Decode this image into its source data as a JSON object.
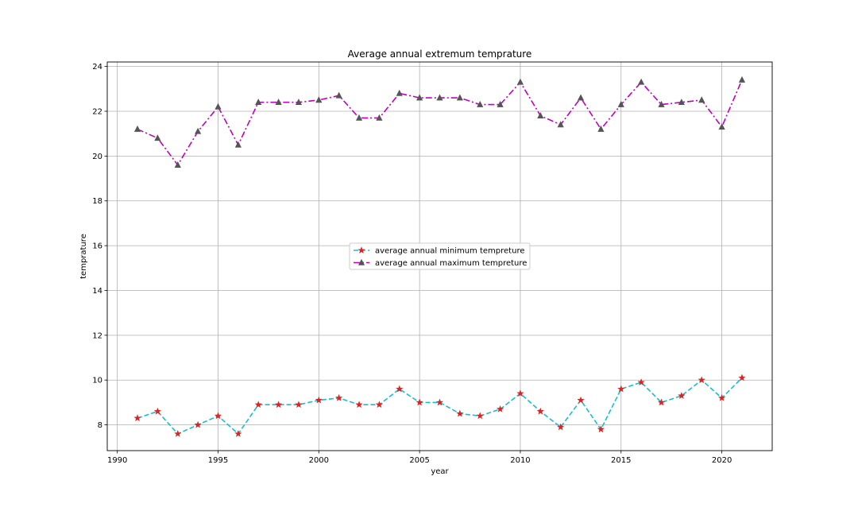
{
  "chart_data": {
    "type": "line",
    "title": "Average annual extremum temprature",
    "xlabel": "year",
    "ylabel": "temprature",
    "xlim": [
      1989.5,
      2022.5
    ],
    "ylim": [
      6.85,
      24.2
    ],
    "xticks": [
      1990,
      1995,
      2000,
      2005,
      2010,
      2015,
      2020
    ],
    "yticks": [
      8,
      10,
      12,
      14,
      16,
      18,
      20,
      22,
      24
    ],
    "grid": true,
    "legend_position": "center",
    "x": [
      1991,
      1992,
      1993,
      1994,
      1995,
      1996,
      1997,
      1998,
      1999,
      2000,
      2001,
      2002,
      2003,
      2004,
      2005,
      2006,
      2007,
      2008,
      2009,
      2010,
      2011,
      2012,
      2013,
      2014,
      2015,
      2016,
      2017,
      2018,
      2019,
      2020,
      2021
    ],
    "series": [
      {
        "name": "average annual minimum tempreture",
        "color": "#17becf",
        "marker_color": "#d62728",
        "marker": "star",
        "linestyle": "dashed",
        "values": [
          8.3,
          8.6,
          7.6,
          8.0,
          8.4,
          7.6,
          8.9,
          8.9,
          8.9,
          9.1,
          9.2,
          8.9,
          8.9,
          9.6,
          9.0,
          9.0,
          8.5,
          8.4,
          8.7,
          9.4,
          8.6,
          7.9,
          9.1,
          7.8,
          9.6,
          9.9,
          9.0,
          9.3,
          10.0,
          9.2,
          10.1
        ]
      },
      {
        "name": "average annual maximum tempreture",
        "color": "#bf00bf",
        "marker_color": "#555555",
        "marker": "triangle",
        "linestyle": "dashdot",
        "values": [
          21.2,
          20.8,
          19.6,
          21.1,
          22.2,
          20.5,
          22.4,
          22.4,
          22.4,
          22.5,
          22.7,
          21.7,
          21.7,
          22.8,
          22.6,
          22.6,
          22.6,
          22.3,
          22.3,
          23.3,
          21.8,
          21.4,
          22.6,
          21.2,
          22.3,
          23.3,
          22.3,
          22.4,
          22.5,
          21.3,
          23.4
        ]
      }
    ]
  }
}
